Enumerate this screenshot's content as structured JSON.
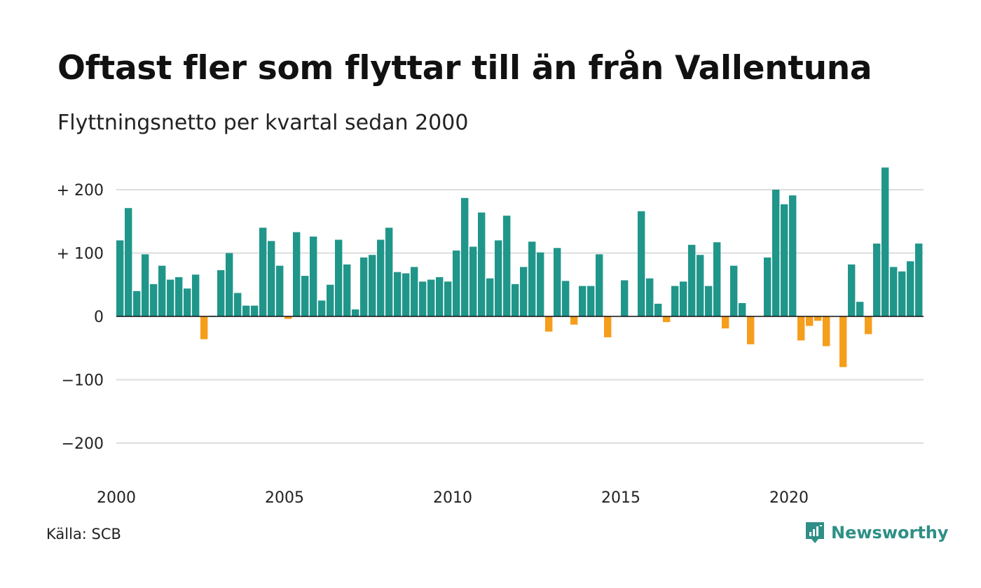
{
  "title": "Oftast fler som flyttar till än från Vallentuna",
  "subtitle": "Flyttningsnetto per kvartal sedan 2000",
  "source": "Källa: SCB",
  "brand": "Newsworthy",
  "colors": {
    "positive": "#20968a",
    "negative": "#f59e1c",
    "grid": "#dddddd",
    "zero_line": "#111111",
    "brand": "#2e8f86"
  },
  "chart_data": {
    "type": "bar",
    "x_start": "2000 Q1",
    "x_ticks": [
      "2000",
      "2005",
      "2010",
      "2015",
      "2020"
    ],
    "y_ticks": [
      {
        "value": 200,
        "label": "+ 200"
      },
      {
        "value": 100,
        "label": "+ 100"
      },
      {
        "value": 0,
        "label": "0"
      },
      {
        "value": -100,
        "label": "−100"
      },
      {
        "value": -200,
        "label": "−200"
      }
    ],
    "ylim": [
      -240,
      240
    ],
    "grid": true,
    "values": [
      120,
      171,
      40,
      98,
      51,
      80,
      58,
      62,
      44,
      66,
      -36,
      1,
      73,
      100,
      37,
      17,
      17,
      140,
      119,
      80,
      -4,
      133,
      64,
      126,
      25,
      50,
      121,
      82,
      11,
      93,
      97,
      121,
      140,
      70,
      68,
      78,
      55,
      58,
      62,
      55,
      104,
      187,
      110,
      164,
      60,
      120,
      159,
      51,
      78,
      118,
      101,
      -24,
      108,
      56,
      -13,
      48,
      48,
      98,
      -33,
      0,
      57,
      0,
      166,
      60,
      20,
      -9,
      48,
      55,
      113,
      97,
      48,
      117,
      -19,
      80,
      21,
      -44,
      0,
      93,
      200,
      177,
      191,
      -38,
      -15,
      -7,
      -47,
      0,
      -80,
      82,
      23,
      -28,
      115,
      235,
      78,
      71,
      87,
      115
    ]
  }
}
